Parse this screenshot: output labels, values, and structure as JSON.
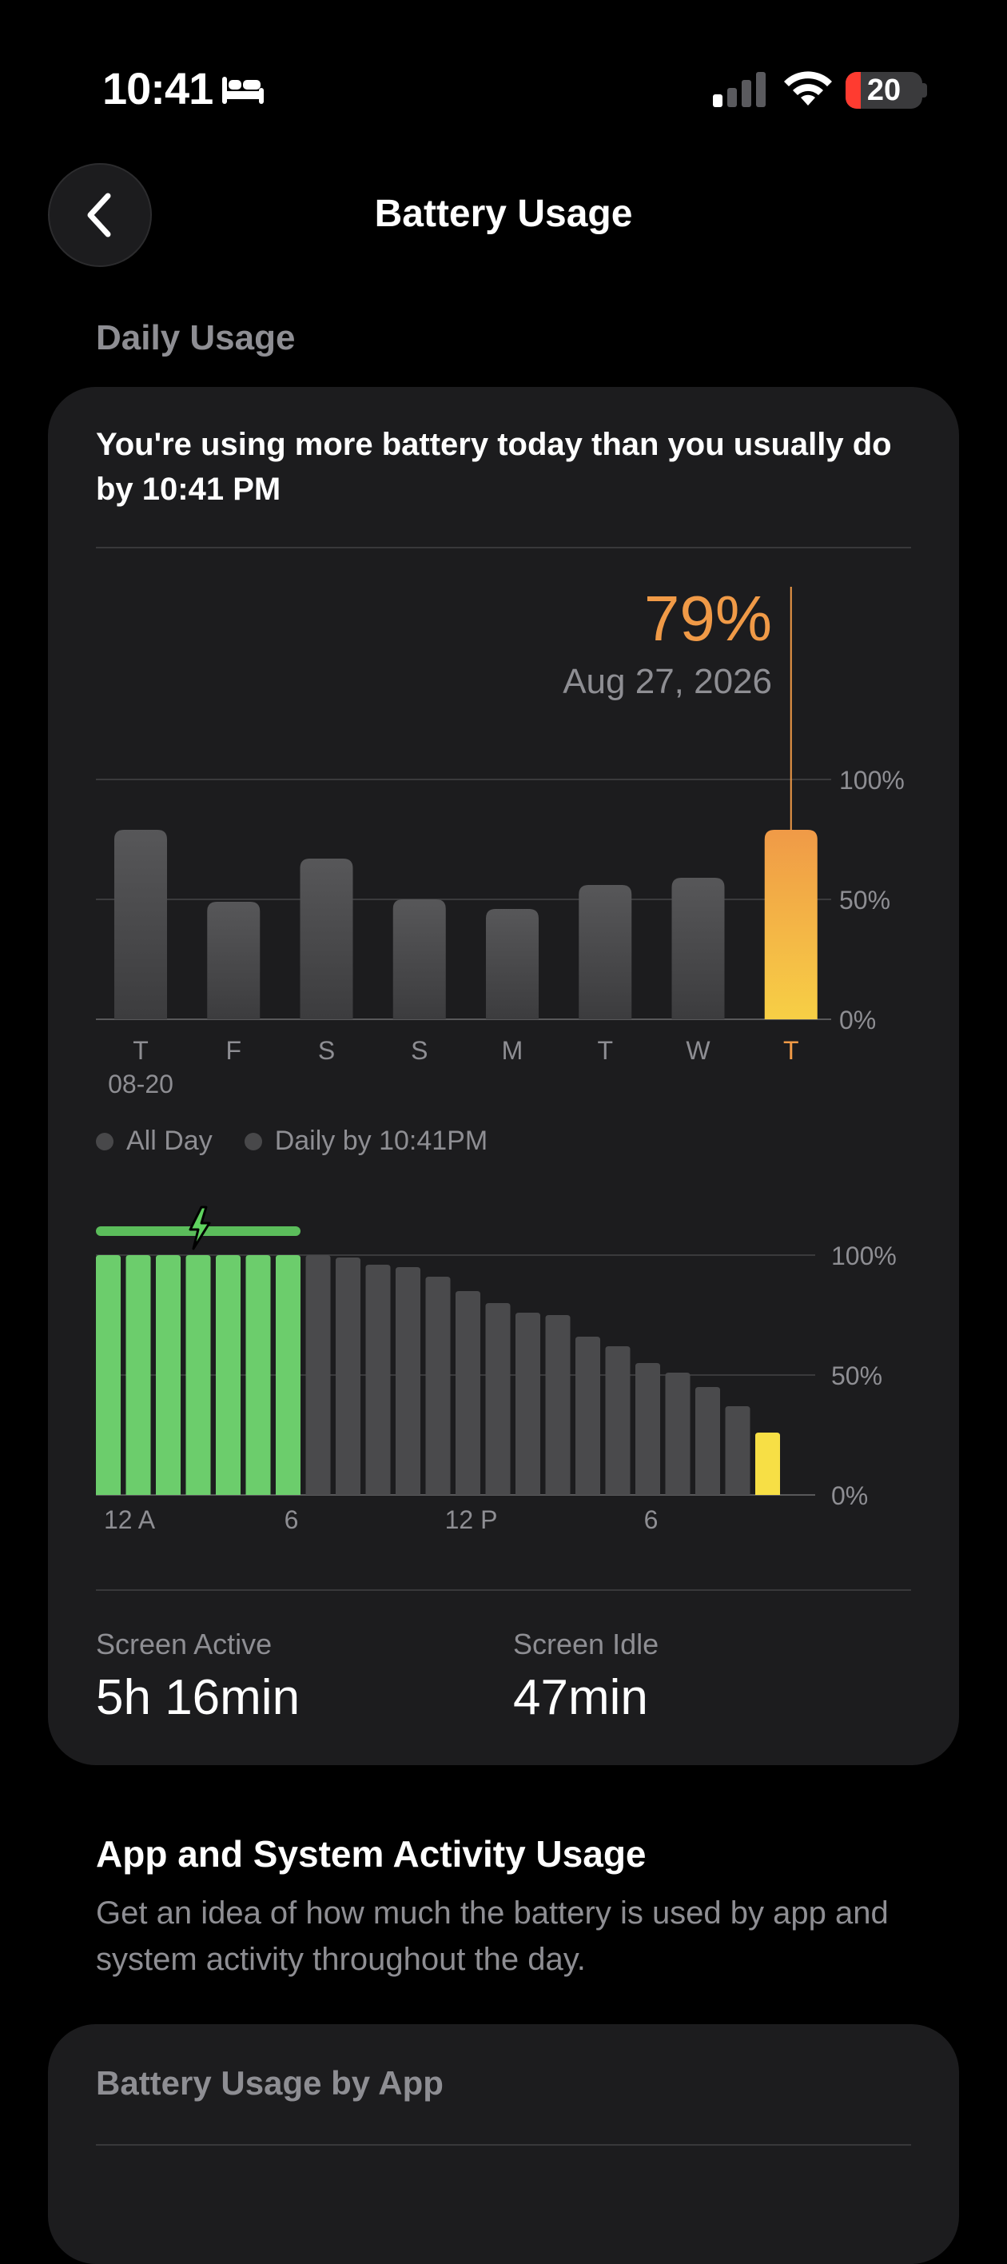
{
  "status_bar": {
    "time": "10:41",
    "battery_level": "20",
    "battery_fraction": 0.2,
    "icons": [
      "bed-icon",
      "cellular-signal-icon",
      "wifi-icon",
      "battery-icon"
    ]
  },
  "nav": {
    "back_icon": "chevron-left-icon",
    "title": "Battery Usage"
  },
  "daily_usage": {
    "section_title": "Daily Usage",
    "message": "You're using more battery today than you usually do by 10:41 PM",
    "selected_value": "79%",
    "selected_date": "Aug 27, 2026",
    "screen_active_label": "Screen Active",
    "screen_active_value": "5h 16min",
    "screen_idle_label": "Screen Idle",
    "screen_idle_value": "47min"
  },
  "legend": {
    "all_day": "All Day",
    "daily_by": "Daily by 10:41PM"
  },
  "chart_data": [
    {
      "type": "bar",
      "categories": [
        "T",
        "F",
        "S",
        "S",
        "M",
        "T",
        "W",
        "T"
      ],
      "first_category_date": "08-20",
      "values": [
        79,
        49,
        67,
        50,
        46,
        56,
        59,
        79
      ],
      "selected_index": 7,
      "y_ticks": [
        "100%",
        "50%",
        "0%"
      ],
      "ylim": [
        0,
        100
      ],
      "colors": {
        "bar": "#4a4a4c",
        "selected_top": "#f09a47",
        "selected_bottom": "#f7cf45",
        "selected_label": "#f09a47"
      }
    },
    {
      "type": "bar",
      "x_labels": [
        "12 A",
        "6",
        "12 P",
        "6"
      ],
      "x_label_hours": [
        0,
        6,
        12,
        18
      ],
      "values": [
        100,
        100,
        100,
        100,
        100,
        100,
        100,
        100,
        99,
        96,
        95,
        91,
        85,
        80,
        76,
        75,
        66,
        62,
        55,
        51,
        45,
        37,
        26
      ],
      "charging_hours": 7,
      "current_index": 22,
      "y_ticks": [
        "100%",
        "50%",
        "0%"
      ],
      "ylim": [
        0,
        100
      ],
      "colors": {
        "charging": "#6ccd6c",
        "normal": "#4a4a4c",
        "current": "#f7df45",
        "charging_strip": "#5bbd5b"
      }
    }
  ],
  "activity": {
    "title": "App and System Activity Usage",
    "description": "Get an idea of how much the battery is used by app and system activity throughout the day."
  },
  "battery_by_app": {
    "title": "Battery Usage by App"
  }
}
